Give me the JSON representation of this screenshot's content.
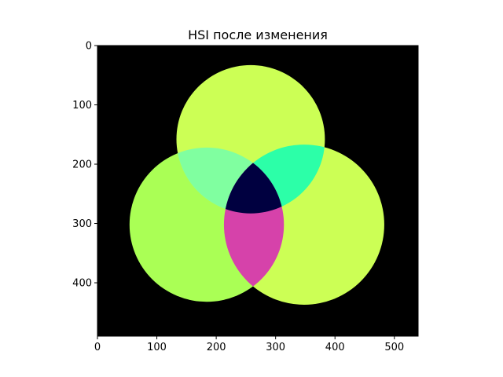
{
  "chart_data": {
    "type": "image",
    "title": "HSI после изменения",
    "xlabel": "",
    "ylabel": "",
    "image_width": 540,
    "image_height": 490,
    "xlim": [
      0,
      540
    ],
    "ylim": [
      490,
      0
    ],
    "x_ticks": [
      0,
      100,
      200,
      300,
      400,
      500
    ],
    "y_ticks": [
      0,
      100,
      200,
      300,
      400
    ],
    "background_color": "#000000",
    "regions": [
      {
        "name": "circle-top",
        "color": "#ccff55"
      },
      {
        "name": "circle-bottom-left",
        "color": "#aaff55"
      },
      {
        "name": "circle-bottom-right",
        "color": "#ccff55"
      },
      {
        "name": "overlap-top-left",
        "color": "#80ffa0"
      },
      {
        "name": "overlap-top-right",
        "color": "#2cffa8"
      },
      {
        "name": "overlap-bottom",
        "color": "#d642aa"
      },
      {
        "name": "center",
        "color": "#000040"
      }
    ],
    "circles": [
      {
        "name": "top",
        "cx": 258,
        "cy": 158,
        "r": 125
      },
      {
        "name": "bottom-left",
        "cx": 184,
        "cy": 302,
        "r": 130
      },
      {
        "name": "bottom-right",
        "cx": 348,
        "cy": 302,
        "r": 135
      }
    ]
  }
}
